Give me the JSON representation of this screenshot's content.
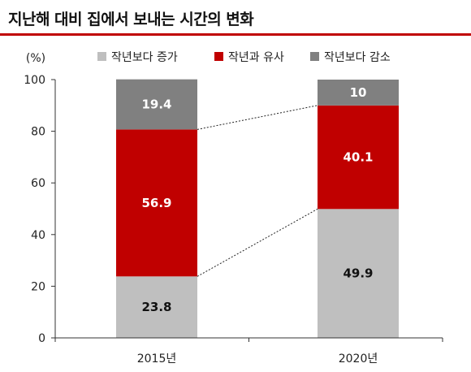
{
  "title": "지난해 대비 집에서 보내는 시간의 변화",
  "chart_data": {
    "type": "bar",
    "stacked": true,
    "unit": "(%)",
    "categories": [
      "2015년",
      "2020년"
    ],
    "series": [
      {
        "name": "작년보다 증가",
        "color": "#bfbfbf",
        "label_color": "#111111",
        "values": [
          23.8,
          49.9
        ]
      },
      {
        "name": "작년과 유사",
        "color": "#c00000",
        "label_color": "#ffffff",
        "values": [
          56.9,
          40.1
        ]
      },
      {
        "name": "작년보다 감소",
        "color": "#808080",
        "label_color": "#ffffff",
        "values": [
          19.4,
          10
        ]
      }
    ],
    "ylim": [
      0,
      100
    ],
    "yticks": [
      0,
      20,
      40,
      60,
      80,
      100
    ],
    "legend_position": "top",
    "grid": false,
    "connector_lines": "dashed"
  }
}
